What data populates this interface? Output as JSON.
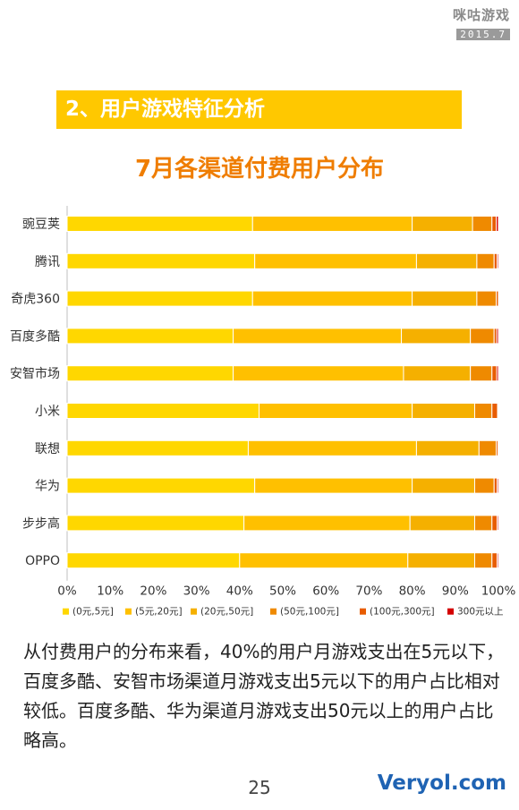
{
  "logo": {
    "mark": "咪咕游戏",
    "date": "2015.7"
  },
  "section": {
    "title": "2、用户游戏特征分析"
  },
  "chart_data": {
    "type": "bar",
    "orientation": "horizontal",
    "stacked": true,
    "title": "7月各渠道付费用户分布",
    "categories": [
      "豌豆荚",
      "腾讯",
      "奇虎360",
      "百度多酷",
      "安智市场",
      "小米",
      "联想",
      "华为",
      "步步高",
      "OPPO"
    ],
    "series": [
      {
        "name": "(0元,5元]",
        "color": "#ffd700",
        "values": [
          43,
          43.5,
          43,
          38.5,
          38.5,
          44.5,
          42,
          43.5,
          41,
          40
        ]
      },
      {
        "name": "(5元,20元]",
        "color": "#ffc000",
        "values": [
          37,
          37.5,
          37,
          39,
          39.5,
          35.5,
          39,
          36.5,
          38.5,
          39
        ]
      },
      {
        "name": "(20元,50元]",
        "color": "#f5b000",
        "values": [
          14,
          14,
          15,
          16,
          15.5,
          14.5,
          14.5,
          14.5,
          15,
          15.5
        ]
      },
      {
        "name": "(50元,100元]",
        "color": "#ef8a00",
        "values": [
          4.5,
          4,
          4.5,
          5.5,
          5,
          4,
          4,
          4.5,
          4,
          4
        ]
      },
      {
        "name": "(100元,300元]",
        "color": "#e85c00",
        "values": [
          1,
          0.7,
          0.5,
          0.6,
          1.1,
          1.3,
          0.4,
          0.7,
          1.2,
          1.2
        ]
      },
      {
        "name": "300元以上",
        "color": "#d40000",
        "values": [
          0.5,
          0.3,
          0,
          0.4,
          0.4,
          0.2,
          0.1,
          0.3,
          0.3,
          0.3
        ]
      }
    ],
    "xlim": [
      0,
      100
    ],
    "xticks": [
      "0%",
      "10%",
      "20%",
      "30%",
      "40%",
      "50%",
      "60%",
      "70%",
      "80%",
      "90%",
      "100%"
    ],
    "legend_position": "bottom",
    "grid": false
  },
  "caption": "从付费用户的分布来看，40%的用户月游戏支出在5元以下，百度多酷、安智市场渠道月游戏支出5元以下的用户占比相对较低。百度多酷、华为渠道月游戏支出50元以上的用户占比略高。",
  "page_number": "25",
  "watermark": "Veryol.com"
}
